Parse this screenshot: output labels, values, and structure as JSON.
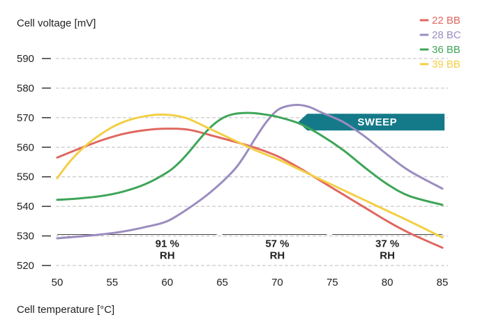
{
  "chart_data": {
    "type": "line",
    "ylabel": "Cell voltage [mV]",
    "xlabel": "Cell temperature [°C]",
    "xlim": [
      50,
      85
    ],
    "ylim": [
      520,
      590
    ],
    "xticks": [
      50,
      55,
      60,
      65,
      70,
      75,
      80,
      85
    ],
    "yticks": [
      520,
      530,
      540,
      550,
      560,
      570,
      580,
      590
    ],
    "grid": "horizontal-dashed",
    "legend_position": "top-right",
    "series": [
      {
        "name": "22 BB",
        "color": "#e0675e",
        "x": [
          50,
          52,
          54,
          56,
          58,
          60,
          62,
          64,
          66,
          68,
          70,
          72,
          74,
          76,
          78,
          80,
          82,
          85
        ],
        "y": [
          556.5,
          559.5,
          562.3,
          564.5,
          565.8,
          566.3,
          565.9,
          564.0,
          562.0,
          559.8,
          557.0,
          553.0,
          548.5,
          544.0,
          539.5,
          535.0,
          531.0,
          526.0
        ]
      },
      {
        "name": "28 BC",
        "color": "#9b8cbf",
        "x": [
          50,
          52,
          54,
          56,
          58,
          60,
          62,
          64,
          66,
          67,
          68,
          69,
          70,
          71,
          72,
          73,
          74,
          76,
          78,
          80,
          82,
          85
        ],
        "y": [
          529.2,
          529.8,
          530.5,
          531.5,
          533.0,
          535.0,
          539.5,
          545.0,
          552.0,
          557.0,
          563.0,
          568.5,
          572.5,
          574.0,
          574.3,
          573.5,
          571.8,
          568.5,
          563.5,
          557.5,
          552.0,
          546.0
        ]
      },
      {
        "name": "36 BB",
        "color": "#3ea558",
        "x": [
          50,
          52,
          54,
          56,
          58,
          60,
          61,
          62,
          63,
          64,
          65,
          66,
          67,
          68,
          69,
          70,
          72,
          74,
          76,
          78,
          80,
          82,
          85
        ],
        "y": [
          542.2,
          542.7,
          543.5,
          545.0,
          547.5,
          551.5,
          554.5,
          558.5,
          563.0,
          567.0,
          569.8,
          571.2,
          571.6,
          571.5,
          571.0,
          570.3,
          568.0,
          564.0,
          559.0,
          553.0,
          547.5,
          543.5,
          540.5
        ]
      },
      {
        "name": "39 BB",
        "color": "#f3cf45",
        "x": [
          50,
          51,
          52,
          53,
          54,
          55,
          56,
          57,
          58,
          59,
          60,
          61,
          62,
          64,
          66,
          68,
          70,
          72,
          74,
          76,
          78,
          80,
          82,
          85
        ],
        "y": [
          549.5,
          554.5,
          558.5,
          561.8,
          564.5,
          566.8,
          568.5,
          569.7,
          570.5,
          571.0,
          571.0,
          570.5,
          569.5,
          566.0,
          562.5,
          559.0,
          556.0,
          552.5,
          549.0,
          545.5,
          542.0,
          538.5,
          535.0,
          529.5
        ]
      }
    ],
    "annotations": {
      "sweep": {
        "text": "SWEEP",
        "color": "#147a89",
        "x_start": 71.9,
        "x_end": 85.2,
        "y": 568.5
      },
      "humidity_bands": [
        {
          "pct": "91 %",
          "unit": "RH",
          "x_start": 50,
          "x_end": 64.5,
          "label_x": 60
        },
        {
          "pct": "57 %",
          "unit": "RH",
          "x_start": 65,
          "x_end": 74.5,
          "label_x": 70
        },
        {
          "pct": "37 %",
          "unit": "RH",
          "x_start": 75,
          "x_end": 85,
          "label_x": 80
        }
      ]
    }
  }
}
